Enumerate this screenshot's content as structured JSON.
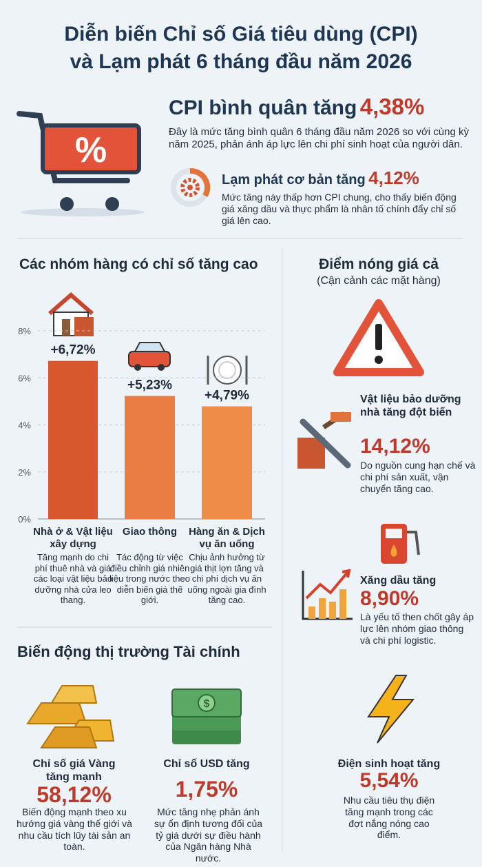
{
  "header": {
    "title": [
      "Diễn biến Chỉ số Giá tiêu dùng (CPI)",
      "và Lạm phát 6 tháng đầu năm 2026"
    ]
  },
  "cpi": {
    "label": "CPI bình quân tăng",
    "value": "4,38%",
    "description": "Đây là mức tăng bình quân 6 tháng đầu năm 2026 so với cùng kỳ năm 2025, phản ánh áp lực lên chi phí sinh hoạt của người dân."
  },
  "core": {
    "label": "Lạm phát cơ bản tăng",
    "value": "4,12%",
    "description": "Mức tăng này thấp hơn CPI chung, cho thấy biến động giá xăng dầu và thực phẩm là nhân tố chính đẩy chỉ số giá lên cao."
  },
  "chart_data": {
    "type": "bar",
    "title": "Các nhóm hàng có chỉ số tăng cao",
    "categories": [
      "Nhà ở & Vật liệu xây dựng",
      "Giao thông",
      "Hàng ăn & Dịch vụ ăn uống"
    ],
    "values": [
      6.72,
      5.23,
      4.79
    ],
    "value_labels": [
      "+6,72%",
      "+5,23%",
      "+4,79%"
    ],
    "colors": [
      "#d9572f",
      "#ea7d44",
      "#ef8c48"
    ],
    "descriptions": [
      "Tăng mạnh do chi phí thuê nhà và giá các loại vật liệu bảo dưỡng nhà cửa leo thang.",
      "Tác động từ việc điều chỉnh giá nhiên liệu trong nước theo diễn biến giá thế giới.",
      "Chịu ảnh hưởng từ giá thịt lợn tăng và chi phí dịch vụ ăn uống ngoài gia đình tăng cao."
    ],
    "ylim": [
      0,
      8
    ],
    "yticks": [
      {
        "value": 0,
        "label": "0%"
      },
      {
        "value": 2,
        "label": "2%"
      },
      {
        "value": 4,
        "label": "4%"
      },
      {
        "value": 6,
        "label": "6%"
      },
      {
        "value": 8,
        "label": "8%"
      }
    ],
    "grid": true
  },
  "hotspots": {
    "title": "Điểm nóng giá cả",
    "subtitle": "(Cận cảnh các mặt hàng)",
    "items": [
      {
        "label": "Vật liệu bảo dưỡng nhà tăng đột biến",
        "value": "14,12%",
        "description": "Do nguồn cung hạn chế và chi phí sản xuất, vận chuyển tăng cao."
      },
      {
        "label": "Xăng dầu tăng",
        "value": "8,90%",
        "description": "Là yếu tố then chốt gây áp lực lên nhóm giao thông và chi phí logistic."
      },
      {
        "label": "Điện sinh hoạt tăng",
        "value": "5,54%",
        "description": "Nhu cầu tiêu thụ điện tăng mạnh trong các đợt nắng nóng cao điểm."
      }
    ]
  },
  "finance": {
    "title": "Biến động thị trường Tài chính",
    "items": [
      {
        "label": "Chỉ số giá Vàng tăng mạnh",
        "value": "58,12%",
        "description": "Biến động mạnh theo xu hướng giá vàng thế giới và nhu cầu tích lũy tài sản an toàn."
      },
      {
        "label": "Chỉ số USD tăng",
        "value": "1,75%",
        "description": "Mức tăng nhẹ phản ánh sự ổn định tương đối của tỷ giá dưới sự điều hành của Ngân hàng Nhà nước."
      }
    ]
  }
}
